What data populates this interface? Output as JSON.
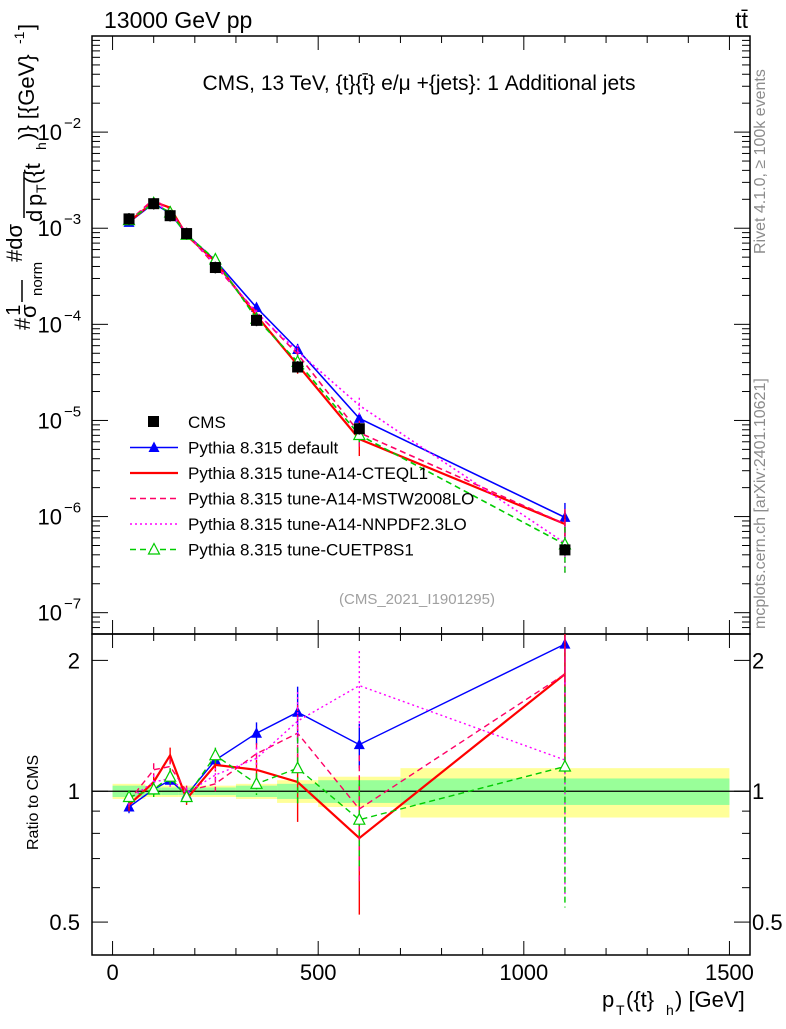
{
  "header": {
    "energy_label": "13000 GeV pp",
    "process_label": "tt̄"
  },
  "plot_title": "CMS, 13 TeV, {t}{t̄} e/μ +{jets}: 1 Additional jets",
  "side_labels": {
    "rivet": "Rivet 4.1.0, ≥ 100k events",
    "mcplots": "mcplots.cern.ch [arXiv:2401.10621]"
  },
  "analysis_id": "(CMS_2021_I1901295)",
  "axes": {
    "ylabel_main": "#1/σ_norm #dσ/d p_T({t}_h)} [{GeV}^-1]",
    "ylabel_main_parts": {
      "hash": "#",
      "one": "1",
      "sigma": "σ",
      "norm": "norm",
      "dsigma": "#dσ",
      "d": "d",
      "p": "p",
      "T": "T",
      "paren": "({t",
      "h": "h",
      "close": ")} [{GeV}",
      "exp": "-1",
      "end": "]"
    },
    "ylabel_ratio": "Ratio to CMS",
    "xlabel_parts": {
      "p": "p",
      "T": "T",
      "paren": "({t}",
      "h": "h",
      "unit": ") [GeV]"
    },
    "x_ticks": [
      {
        "value": 0,
        "label": "0"
      },
      {
        "value": 500,
        "label": "500"
      },
      {
        "value": 1000,
        "label": "1000"
      },
      {
        "value": 1500,
        "label": "1500"
      }
    ],
    "y_ticks_main": [
      {
        "value": 1e-07,
        "base": "10",
        "exp": "−7"
      },
      {
        "value": 1e-06,
        "base": "10",
        "exp": "−6"
      },
      {
        "value": 1e-05,
        "base": "10",
        "exp": "−5"
      },
      {
        "value": 0.0001,
        "base": "10",
        "exp": "−4"
      },
      {
        "value": 0.001,
        "base": "10",
        "exp": "−3"
      },
      {
        "value": 0.01,
        "base": "10",
        "exp": "−2"
      }
    ],
    "y_ticks_ratio": [
      {
        "value": 0.5,
        "label": "0.5"
      },
      {
        "value": 1,
        "label": "1"
      },
      {
        "value": 2,
        "label": "2"
      }
    ]
  },
  "chart_data": {
    "type": "line",
    "title": "CMS, 13 TeV, {t}{t̄} e/μ +{jets}: 1 Additional jets",
    "xlabel": "p_T({t}_h) [GeV]",
    "ylabel": "#1/σ_norm #dσ/d p_T({t}_h)} [{GeV}^-1]",
    "xlim": [
      -50,
      1550
    ],
    "ylim": [
      6e-08,
      0.1
    ],
    "yscale": "log",
    "ratio_ylabel": "Ratio to CMS",
    "ratio_ylim": [
      0.42,
      2.3
    ],
    "ratio_yscale": "log",
    "x": [
      40,
      100,
      140,
      180,
      250,
      350,
      450,
      600,
      1100
    ],
    "bin_edges": [
      0,
      80,
      120,
      160,
      200,
      300,
      400,
      500,
      700,
      1500
    ],
    "data": {
      "name": "CMS",
      "values": [
        0.00125,
        0.0018,
        0.00135,
        0.00088,
        0.00039,
        0.00011,
        3.6e-05,
        8.2e-06,
        4.5e-07
      ],
      "band_inner": [
        0.03,
        0.02,
        0.02,
        0.02,
        0.02,
        0.03,
        0.04,
        0.06,
        0.07
      ],
      "band_outer": [
        0.04,
        0.03,
        0.03,
        0.03,
        0.03,
        0.04,
        0.06,
        0.08,
        0.13
      ]
    },
    "series": [
      {
        "name": "Pythia 8.315 default",
        "color": "#0000ff",
        "dash": "",
        "marker": "triangle-filled",
        "ratio": [
          0.92,
          1.01,
          1.06,
          0.98,
          1.18,
          1.36,
          1.52,
          1.28,
          2.18
        ],
        "ratio_err": [
          0.03,
          0.03,
          0.03,
          0.03,
          0.04,
          0.08,
          0.22,
          0.15,
          0.9
        ]
      },
      {
        "name": "Pythia 8.315 tune-A14-CTEQL1",
        "color": "#ff0000",
        "dash": "",
        "marker": "none",
        "ratio": [
          0.93,
          1.05,
          1.21,
          0.96,
          1.15,
          1.12,
          1.05,
          0.78,
          1.86
        ],
        "ratio_err": [
          0.03,
          0.04,
          0.05,
          0.03,
          0.04,
          0.06,
          0.2,
          0.26,
          0.7
        ]
      },
      {
        "name": "Pythia 8.315 tune-A14-MSTW2008LO",
        "color": "#ff0066",
        "dash": "6,4",
        "marker": "none",
        "ratio": [
          0.95,
          1.12,
          1.14,
          1.0,
          1.04,
          1.22,
          1.36,
          0.91,
          1.86
        ],
        "ratio_err": [
          0.03,
          0.04,
          0.05,
          0.03,
          0.04,
          0.07,
          0.22,
          0.3,
          0.8
        ]
      },
      {
        "name": "Pythia 8.315 tune-A14-NNPDF2.3LO",
        "color": "#ff00ff",
        "dash": "2,3",
        "marker": "none",
        "ratio": [
          0.96,
          1.05,
          1.07,
          0.99,
          1.09,
          1.19,
          1.45,
          1.75,
          1.18
        ],
        "ratio_err": [
          0.03,
          0.04,
          0.05,
          0.03,
          0.04,
          0.07,
          0.24,
          0.35,
          0.6
        ]
      },
      {
        "name": "Pythia 8.315 tune-CUETP8S1",
        "color": "#00cc00",
        "dash": "6,4",
        "marker": "triangle-open",
        "ratio": [
          0.97,
          1.01,
          1.08,
          0.97,
          1.21,
          1.04,
          1.13,
          0.86,
          1.14
        ],
        "ratio_err": [
          0.03,
          0.04,
          0.05,
          0.03,
          0.05,
          0.06,
          0.2,
          0.2,
          0.6
        ]
      }
    ]
  },
  "legend": {
    "data_label": "CMS",
    "entries": [
      "Pythia 8.315 default",
      "Pythia 8.315 tune-A14-CTEQL1",
      "Pythia 8.315 tune-A14-MSTW2008LO",
      "Pythia 8.315 tune-A14-NNPDF2.3LO",
      "Pythia 8.315 tune-CUETP8S1"
    ]
  }
}
